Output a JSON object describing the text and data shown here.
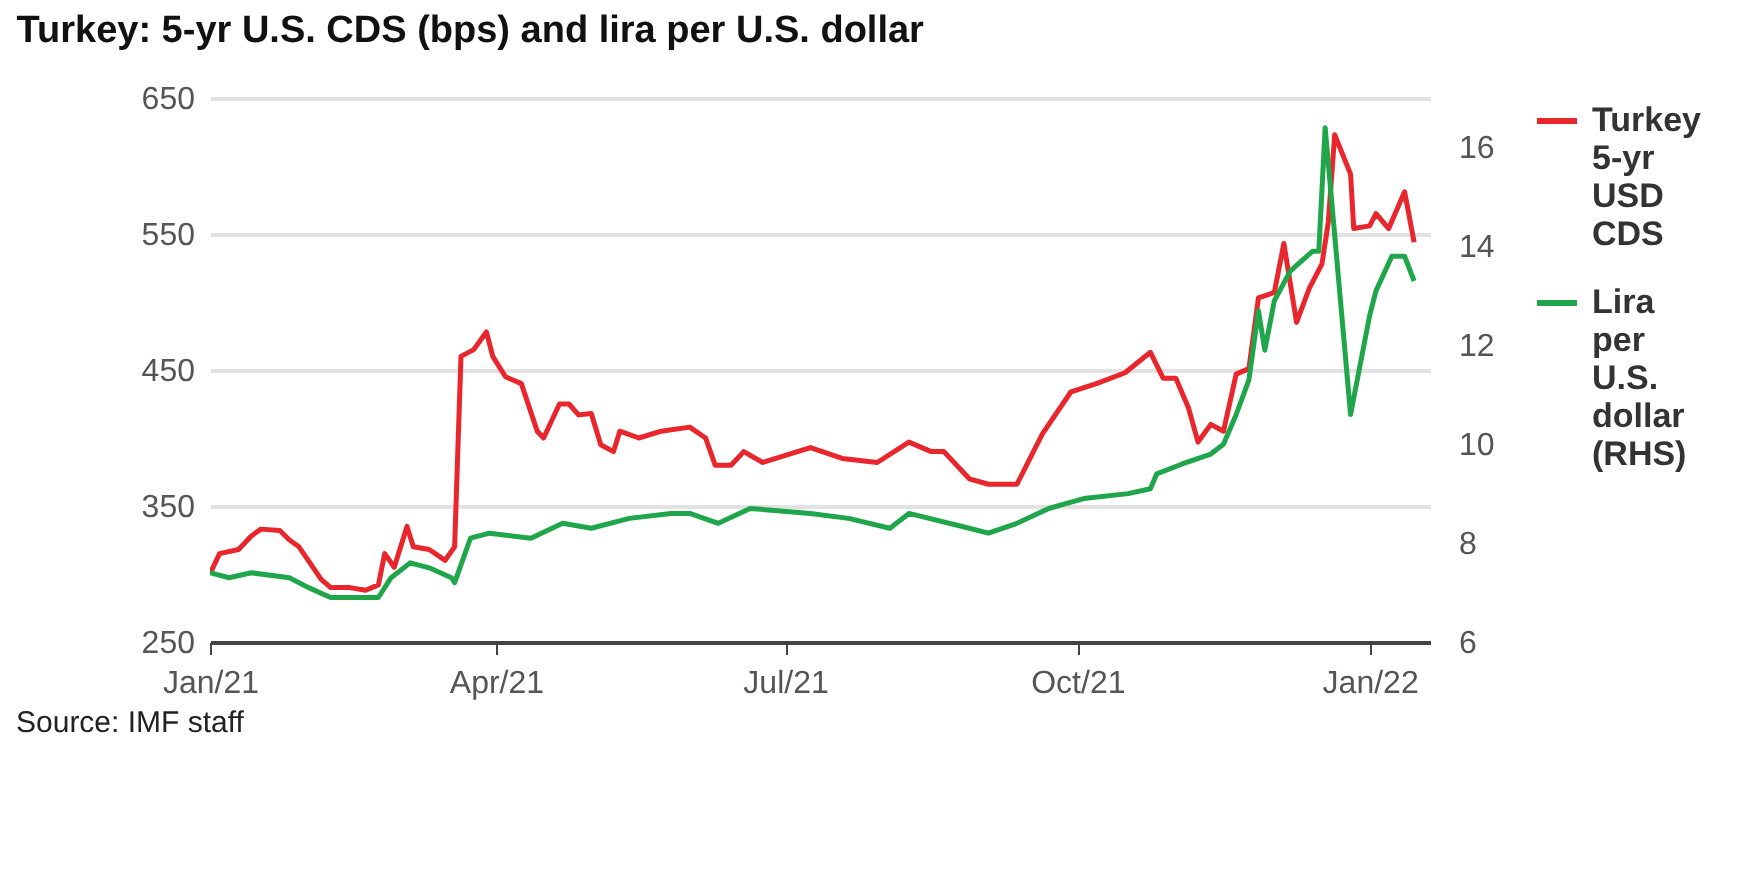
{
  "chart_data": {
    "type": "line",
    "title": "Turkey: 5-yr U.S. CDS (bps) and lira per U.S. dollar",
    "annotations": [
      "Source: IMF staff"
    ],
    "xlim": [
      "2021-01-01",
      "2022-01-20"
    ],
    "xticks": [
      {
        "value": "2021-01-01",
        "label": "Jan/21"
      },
      {
        "value": "2021-04-01",
        "label": "Apr/21"
      },
      {
        "value": "2021-07-01",
        "label": "Jul/21"
      },
      {
        "value": "2021-10-01",
        "label": "Oct/21"
      },
      {
        "value": "2022-01-01",
        "label": "Jan/22"
      }
    ],
    "ylim": [
      250,
      650
    ],
    "yticks": [
      250,
      350,
      450,
      550,
      650
    ],
    "y2lim": [
      6,
      17
    ],
    "y2ticks": [
      6,
      8,
      10,
      12,
      14,
      16
    ],
    "grid": "y",
    "legend": "right",
    "line_style": "solid",
    "marker": "none",
    "series": [
      {
        "name": "Turkey 5-yr USD CDS",
        "color": "#e8262b",
        "x": [
          "2021-01-01",
          "2021-01-04",
          "2021-01-10",
          "2021-01-14",
          "2021-01-17",
          "2021-01-23",
          "2021-01-26",
          "2021-01-29",
          "2021-02-05",
          "2021-02-08",
          "2021-02-14",
          "2021-02-19",
          "2021-02-23",
          "2021-02-25",
          "2021-02-28",
          "2021-03-04",
          "2021-03-06",
          "2021-03-11",
          "2021-03-16",
          "2021-03-19",
          "2021-03-21",
          "2021-03-25",
          "2021-03-29",
          "2021-03-31",
          "2021-04-04",
          "2021-04-09",
          "2021-04-14",
          "2021-04-16",
          "2021-04-21",
          "2021-04-24",
          "2021-04-27",
          "2021-05-01",
          "2021-05-04",
          "2021-05-08",
          "2021-05-10",
          "2021-05-16",
          "2021-05-23",
          "2021-06-01",
          "2021-06-06",
          "2021-06-09",
          "2021-06-14",
          "2021-06-18",
          "2021-06-24",
          "2021-07-09",
          "2021-07-19",
          "2021-07-30",
          "2021-08-09",
          "2021-08-16",
          "2021-08-20",
          "2021-08-28",
          "2021-09-03",
          "2021-09-12",
          "2021-09-20",
          "2021-09-29",
          "2021-10-07",
          "2021-10-16",
          "2021-10-24",
          "2021-10-28",
          "2021-11-01",
          "2021-11-05",
          "2021-11-08",
          "2021-11-12",
          "2021-11-16",
          "2021-11-20",
          "2021-11-24",
          "2021-11-27",
          "2021-12-02",
          "2021-12-05",
          "2021-12-09",
          "2021-12-13",
          "2021-12-17",
          "2021-12-19",
          "2021-12-21",
          "2021-12-26",
          "2021-12-27",
          "2022-01-01",
          "2022-01-03",
          "2022-01-07",
          "2022-01-12",
          "2022-01-15"
        ],
        "values": [
          300,
          315,
          318,
          328,
          333,
          332,
          325,
          320,
          296,
          290,
          290,
          288,
          292,
          315,
          305,
          335,
          320,
          318,
          310,
          320,
          460,
          465,
          478,
          460,
          445,
          440,
          405,
          400,
          425,
          425,
          417,
          418,
          395,
          390,
          405,
          400,
          405,
          408,
          400,
          380,
          380,
          390,
          382,
          393,
          385,
          382,
          397,
          390,
          390,
          370,
          366,
          366,
          403,
          434,
          440,
          448,
          463,
          444,
          444,
          422,
          397,
          410,
          405,
          447,
          451,
          503,
          507,
          543,
          485,
          510,
          528,
          559,
          623,
          594,
          554,
          556,
          565,
          554,
          581,
          544
        ]
      },
      {
        "name": "Lira per U.S. dollar (RHS)",
        "color": "#1fa64a",
        "axis": "y2",
        "x": [
          "2021-01-01",
          "2021-01-07",
          "2021-01-14",
          "2021-01-26",
          "2021-02-01",
          "2021-02-08",
          "2021-02-17",
          "2021-02-23",
          "2021-02-27",
          "2021-03-05",
          "2021-03-11",
          "2021-03-18",
          "2021-03-19",
          "2021-03-24",
          "2021-03-30",
          "2021-04-12",
          "2021-04-22",
          "2021-05-01",
          "2021-05-13",
          "2021-05-26",
          "2021-06-01",
          "2021-06-10",
          "2021-06-20",
          "2021-07-09",
          "2021-07-21",
          "2021-08-03",
          "2021-08-09",
          "2021-08-28",
          "2021-09-03",
          "2021-09-12",
          "2021-09-22",
          "2021-10-03",
          "2021-10-17",
          "2021-10-24",
          "2021-10-26",
          "2021-11-03",
          "2021-11-12",
          "2021-11-16",
          "2021-11-20",
          "2021-11-24",
          "2021-11-27",
          "2021-11-29",
          "2021-12-02",
          "2021-12-07",
          "2021-12-14",
          "2021-12-16",
          "2021-12-18",
          "2021-12-26",
          "2022-01-01",
          "2022-01-03",
          "2022-01-08",
          "2022-01-12",
          "2022-01-15"
        ],
        "values": [
          7.4,
          7.3,
          7.4,
          7.3,
          7.1,
          6.9,
          6.9,
          6.9,
          7.3,
          7.6,
          7.5,
          7.3,
          7.2,
          8.1,
          8.2,
          8.1,
          8.4,
          8.3,
          8.5,
          8.6,
          8.6,
          8.4,
          8.7,
          8.6,
          8.5,
          8.3,
          8.6,
          8.3,
          8.2,
          8.4,
          8.7,
          8.9,
          9.0,
          9.1,
          9.4,
          9.6,
          9.8,
          10.0,
          10.6,
          11.3,
          12.7,
          11.9,
          12.9,
          13.5,
          13.9,
          13.9,
          16.4,
          10.6,
          12.6,
          13.1,
          13.8,
          13.8,
          13.3
        ]
      }
    ]
  }
}
